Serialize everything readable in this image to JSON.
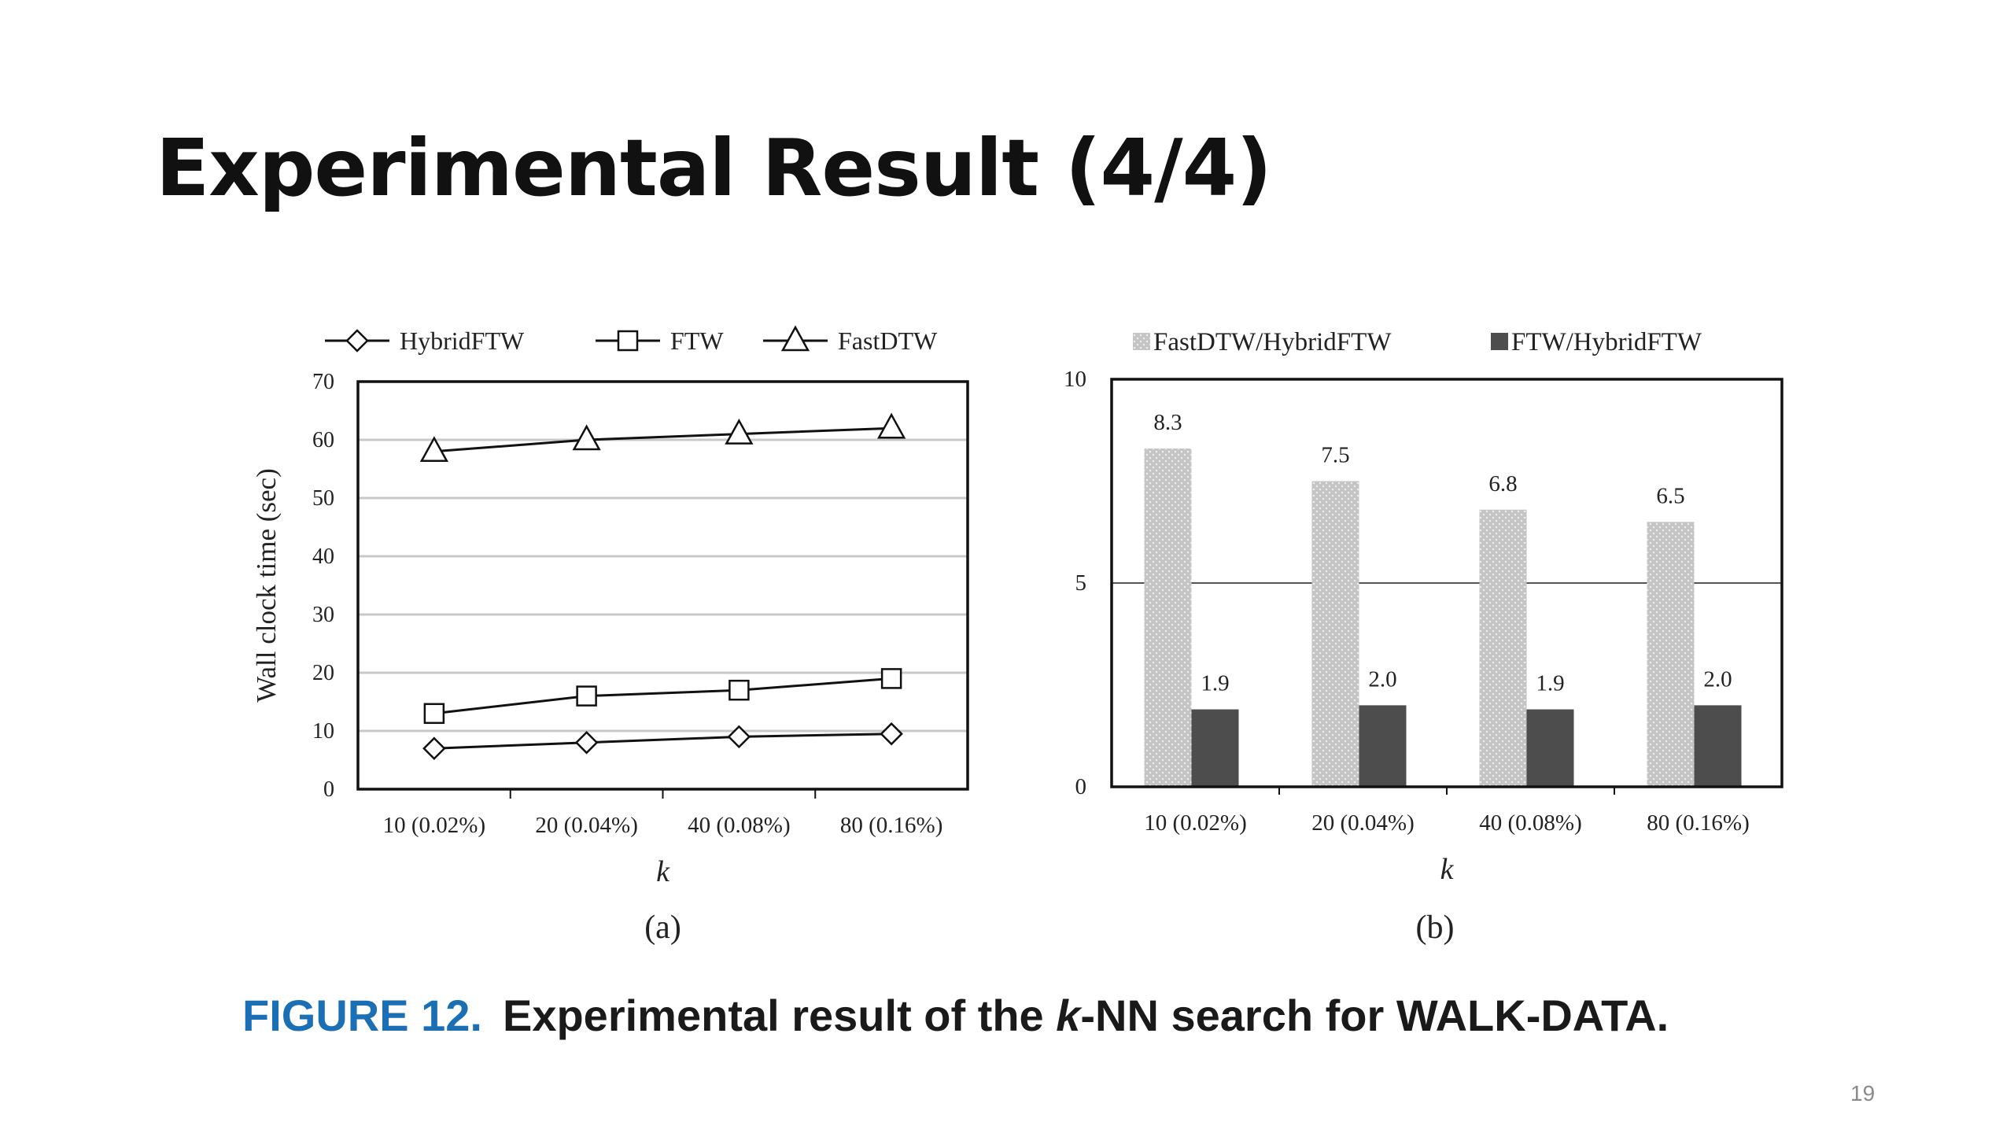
{
  "slide": {
    "title": "Experimental Result (4/4)",
    "page_number": "19"
  },
  "caption": {
    "figure_label": "FIGURE 12.",
    "text_before": "Experimental result of the ",
    "text_italic": "k",
    "text_after": "-NN search for WALK-DATA."
  },
  "chart_data": [
    {
      "type": "line",
      "panel_label": "(a)",
      "categories": [
        "10 (0.02%)",
        "20 (0.04%)",
        "40 (0.08%)",
        "80 (0.16%)"
      ],
      "series": [
        {
          "name": "HybridFTW",
          "marker": "diamond",
          "values": [
            7,
            8,
            9,
            9.5
          ]
        },
        {
          "name": "FTW",
          "marker": "square",
          "values": [
            13,
            16,
            17,
            19
          ]
        },
        {
          "name": "FastDTW",
          "marker": "triangle",
          "values": [
            58,
            60,
            61,
            62
          ]
        }
      ],
      "xlabel": "k",
      "ylabel": "Wall clock time (sec)",
      "ylim": [
        0,
        70
      ],
      "yticks": [
        "0",
        "10",
        "20",
        "30",
        "40",
        "50",
        "60",
        "70"
      ],
      "grid": true,
      "legend_position": "top"
    },
    {
      "type": "bar",
      "panel_label": "(b)",
      "categories": [
        "10 (0.02%)",
        "20 (0.04%)",
        "40 (0.08%)",
        "80 (0.16%)"
      ],
      "series": [
        {
          "name": "FastDTW/HybridFTW",
          "color": "#c8c8c8",
          "values": [
            8.3,
            7.5,
            6.8,
            6.5
          ],
          "labels": [
            "8.3",
            "7.5",
            "6.8",
            "6.5"
          ]
        },
        {
          "name": "FTW/HybridFTW",
          "color": "#4d4d4d",
          "values": [
            1.9,
            2.0,
            1.9,
            2.0
          ],
          "labels": [
            "1.9",
            "2.0",
            "1.9",
            "2.0"
          ]
        }
      ],
      "xlabel": "k",
      "ylabel": "",
      "ylim": [
        0,
        10
      ],
      "yticks": [
        "0",
        "5",
        "10"
      ],
      "grid": true,
      "legend_position": "top"
    }
  ]
}
